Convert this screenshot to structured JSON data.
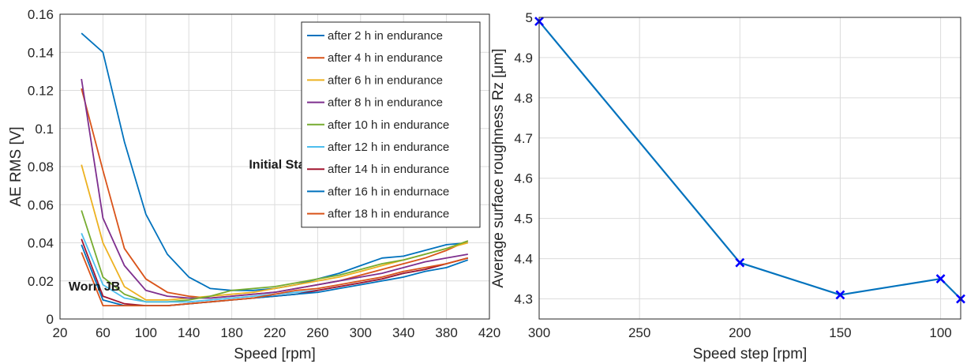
{
  "chart_data": [
    {
      "type": "line",
      "xlabel": "Speed [rpm]",
      "ylabel": "AE RMS [V]",
      "xlim": [
        20,
        420
      ],
      "ylim": [
        0,
        0.16
      ],
      "xticks": [
        20,
        60,
        100,
        140,
        180,
        220,
        260,
        300,
        340,
        380,
        420
      ],
      "xtick_labels": [
        "20",
        "60",
        "100",
        "140",
        "180",
        "220",
        "260",
        "300",
        "340",
        "380",
        "420"
      ],
      "yticks": [
        0,
        0.02,
        0.04,
        0.06,
        0.08,
        0.1,
        0.12,
        0.14,
        0.16
      ],
      "ytick_labels": [
        "0",
        "0.02",
        "0.04",
        "0.06",
        "0.08",
        "0.1",
        "0.12",
        "0.14",
        "0.16"
      ],
      "grid": true,
      "legend_position": "top-right",
      "annotations": [
        {
          "text": "Initial State",
          "x": 196,
          "y": 0.079
        },
        {
          "text": "Worn JB",
          "x": 28,
          "y": 0.015
        }
      ],
      "x": [
        40,
        60,
        80,
        100,
        120,
        140,
        160,
        180,
        200,
        220,
        240,
        260,
        280,
        300,
        320,
        340,
        360,
        380,
        400
      ],
      "series": [
        {
          "name": "after 2 h in endurance",
          "color": "#0072BD",
          "values": [
            0.15,
            0.14,
            0.093,
            0.055,
            0.034,
            0.022,
            0.016,
            0.015,
            0.015,
            0.016,
            0.018,
            0.021,
            0.024,
            0.028,
            0.032,
            0.033,
            0.036,
            0.039,
            0.04
          ]
        },
        {
          "name": "after 4 h in endurance",
          "color": "#D95319",
          "values": [
            0.121,
            0.078,
            0.037,
            0.021,
            0.014,
            0.012,
            0.011,
            0.012,
            0.013,
            0.014,
            0.016,
            0.018,
            0.02,
            0.023,
            0.026,
            0.029,
            0.032,
            0.036,
            0.041
          ]
        },
        {
          "name": "after 6 h in endurance",
          "color": "#EDB120",
          "values": [
            0.081,
            0.04,
            0.017,
            0.01,
            0.01,
            0.011,
            0.012,
            0.013,
            0.014,
            0.016,
            0.018,
            0.02,
            0.022,
            0.025,
            0.028,
            0.031,
            0.034,
            0.037,
            0.04
          ]
        },
        {
          "name": "after 8 h in endurance",
          "color": "#7E2F8E",
          "values": [
            0.126,
            0.053,
            0.028,
            0.015,
            0.012,
            0.011,
            0.011,
            0.012,
            0.013,
            0.014,
            0.016,
            0.018,
            0.02,
            0.022,
            0.024,
            0.027,
            0.03,
            0.032,
            0.034
          ]
        },
        {
          "name": "after 10 h in endurance",
          "color": "#77AC30",
          "values": [
            0.057,
            0.022,
            0.013,
            0.009,
            0.009,
            0.01,
            0.012,
            0.015,
            0.016,
            0.017,
            0.019,
            0.021,
            0.023,
            0.026,
            0.029,
            0.031,
            0.034,
            0.037,
            0.041
          ]
        },
        {
          "name": "after 12 h in endurance",
          "color": "#4DBEEE",
          "values": [
            0.045,
            0.018,
            0.011,
            0.009,
            0.009,
            0.009,
            0.01,
            0.011,
            0.012,
            0.013,
            0.014,
            0.015,
            0.017,
            0.019,
            0.021,
            0.024,
            0.026,
            0.029,
            0.032
          ]
        },
        {
          "name": "after 14 h in endurance",
          "color": "#A2142F",
          "values": [
            0.042,
            0.012,
            0.008,
            0.007,
            0.007,
            0.008,
            0.009,
            0.01,
            0.011,
            0.012,
            0.013,
            0.015,
            0.017,
            0.019,
            0.021,
            0.024,
            0.026,
            0.029,
            0.032
          ]
        },
        {
          "name": "after 16 h in endurnace",
          "color": "#0072BD",
          "values": [
            0.039,
            0.01,
            0.007,
            0.007,
            0.007,
            0.008,
            0.009,
            0.01,
            0.011,
            0.012,
            0.013,
            0.014,
            0.016,
            0.018,
            0.02,
            0.022,
            0.025,
            0.027,
            0.031
          ]
        },
        {
          "name": "after 18 h in endurance",
          "color": "#D95319",
          "values": [
            0.035,
            0.007,
            0.007,
            0.007,
            0.007,
            0.008,
            0.009,
            0.01,
            0.011,
            0.013,
            0.015,
            0.016,
            0.018,
            0.02,
            0.022,
            0.025,
            0.027,
            0.029,
            0.032
          ]
        }
      ]
    },
    {
      "type": "line",
      "xlabel": "Speed step [rpm]",
      "ylabel": "Average surface roughness Rz [μm]",
      "x_reversed": true,
      "xlim": [
        300,
        90
      ],
      "ylim": [
        4.25,
        5
      ],
      "xticks": [
        300,
        250,
        200,
        150,
        100
      ],
      "xtick_labels": [
        "300",
        "250",
        "200",
        "150",
        "100"
      ],
      "yticks": [
        4.3,
        4.4,
        4.5,
        4.6,
        4.7,
        4.8,
        4.9,
        5
      ],
      "ytick_labels": [
        "4.3",
        "4.4",
        "4.5",
        "4.6",
        "4.7",
        "4.8",
        "4.9",
        "5"
      ],
      "grid": true,
      "marker": "x",
      "series": [
        {
          "color": "#0072BD",
          "marker_color": "#0000FF",
          "x": [
            300,
            200,
            150,
            100,
            90
          ],
          "values": [
            4.99,
            4.39,
            4.31,
            4.35,
            4.3
          ]
        }
      ]
    }
  ]
}
